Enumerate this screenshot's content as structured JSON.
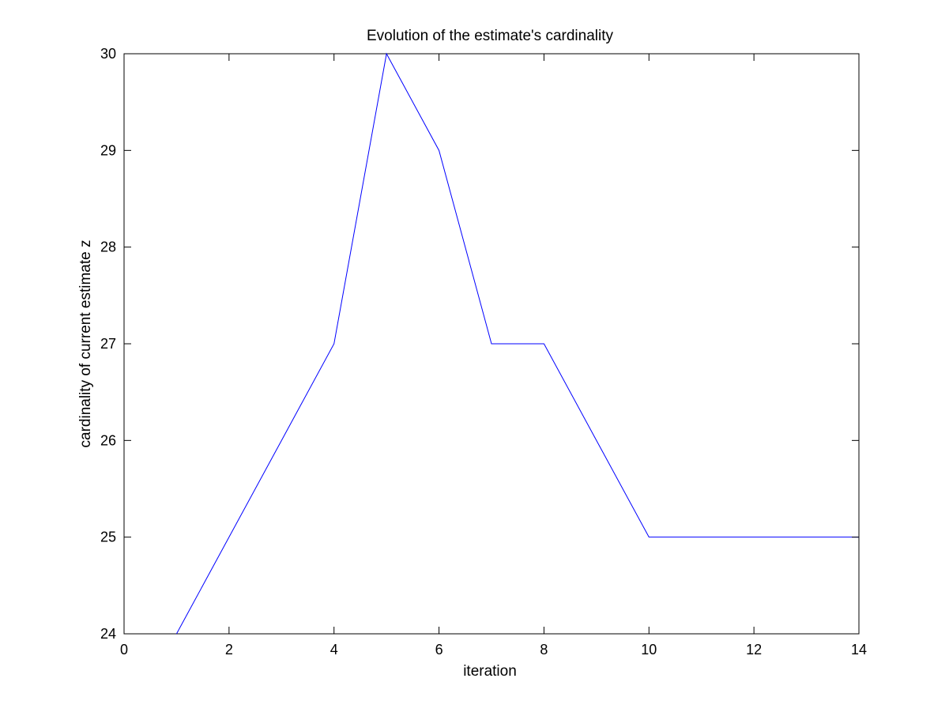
{
  "chart_data": {
    "type": "line",
    "title": "Evolution of the estimate's cardinality",
    "xlabel": "iteration",
    "ylabel": "cardinality of current estimate z",
    "xlim": [
      0,
      14
    ],
    "ylim": [
      24,
      30
    ],
    "xticks": [
      0,
      2,
      4,
      6,
      8,
      10,
      12,
      14
    ],
    "yticks": [
      24,
      25,
      26,
      27,
      28,
      29,
      30
    ],
    "xtick_labels": [
      "0",
      "2",
      "4",
      "6",
      "8",
      "10",
      "12",
      "14"
    ],
    "ytick_labels": [
      "24",
      "25",
      "26",
      "27",
      "28",
      "29",
      "30"
    ],
    "grid": false,
    "series": [
      {
        "x": [
          1,
          2,
          3,
          4,
          5,
          6,
          7,
          8,
          9,
          10,
          11,
          12,
          13,
          14
        ],
        "y": [
          24,
          25,
          26,
          27,
          30,
          29,
          27,
          27,
          26,
          25,
          25,
          25,
          25,
          25
        ]
      }
    ],
    "colors": {
      "line": "#0000ff",
      "axes": "#000000",
      "background": "#ffffff"
    }
  }
}
